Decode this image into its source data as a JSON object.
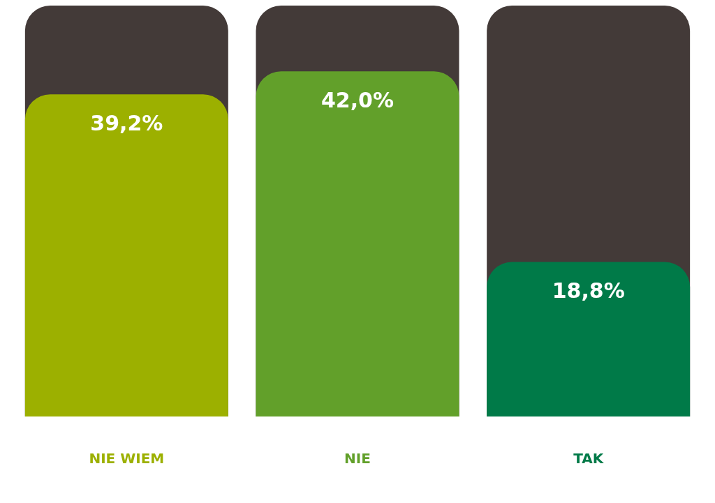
{
  "chart_data": {
    "type": "bar",
    "categories": [
      "NIE WIEM",
      "NIE",
      "TAK"
    ],
    "values": [
      39.2,
      42.0,
      18.8
    ],
    "colors": [
      "#9cb000",
      "#62a02a",
      "#007a48"
    ],
    "value_labels": [
      "39,2%",
      "42,0%",
      "18,8%"
    ],
    "grid": false
  }
}
